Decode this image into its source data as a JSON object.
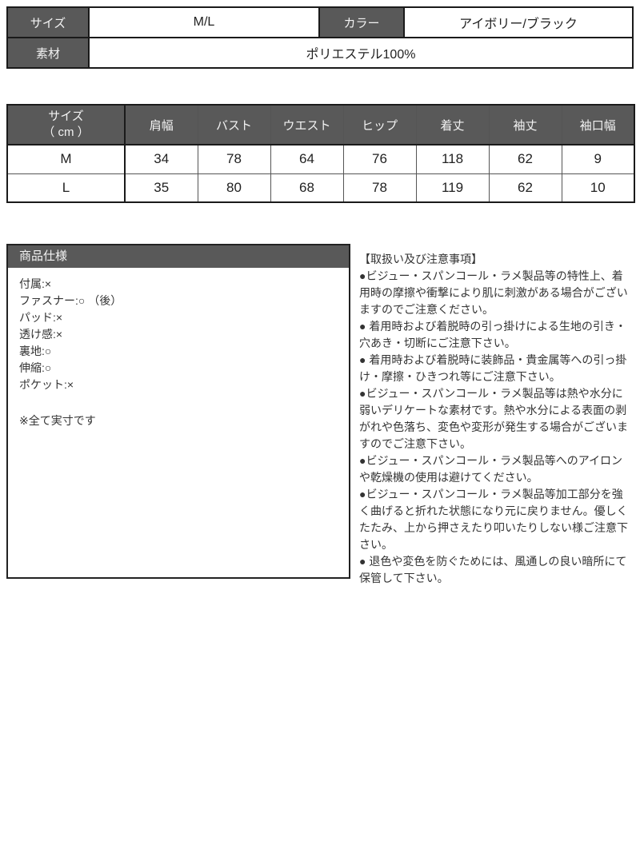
{
  "colors": {
    "header_bg": "#595959",
    "header_text": "#f2f2f2",
    "border": "#1a1a1a",
    "body_text": "#333333"
  },
  "info_table": {
    "size_label": "サイズ",
    "size_value": "M/L",
    "color_label": "カラー",
    "color_value": "アイボリー/ブラック",
    "material_label": "素材",
    "material_value": "ポリエステル100%"
  },
  "size_chart": {
    "col0_line1": "サイズ",
    "col0_line2": "（ cm ）",
    "columns": [
      "肩幅",
      "バスト",
      "ウエスト",
      "ヒップ",
      "着丈",
      "袖丈",
      "袖口幅"
    ],
    "rows": [
      {
        "size": "M",
        "values": [
          34,
          78,
          64,
          76,
          118,
          62,
          9
        ]
      },
      {
        "size": "L",
        "values": [
          35,
          80,
          68,
          78,
          119,
          62,
          10
        ]
      }
    ]
  },
  "spec_box": {
    "title": "商品仕様",
    "lines": [
      "付属:×",
      "ファスナー:○ （後）",
      "パッド:×",
      "透け感:×",
      "裏地:○",
      "伸縮:○",
      "ポケット:×"
    ],
    "note": "※全て実寸です"
  },
  "care_notes": {
    "title": "【取扱い及び注意事項】",
    "items": [
      "●ビジュー・スパンコール・ラメ製品等の特性上、着用時の摩擦や衝撃により肌に刺激がある場合がございますのでご注意ください。",
      "● 着用時および着脱時の引っ掛けによる生地の引き・穴あき・切断にご注意下さい。",
      "● 着用時および着脱時に装飾品・貴金属等への引っ掛け・摩擦・ひきつれ等にご注意下さい。",
      "●ビジュー・スパンコール・ラメ製品等は熱や水分に弱いデリケートな素材です。熱や水分による表面の剥がれや色落ち、変色や変形が発生する場合がございますのでご注意下さい。",
      "●ビジュー・スパンコール・ラメ製品等へのアイロンや乾燥機の使用は避けてください。",
      "●ビジュー・スパンコール・ラメ製品等加工部分を強く曲げると折れた状態になり元に戻りません。優しくたたみ、上から押さえたり叩いたりしない様ご注意下さい。",
      "● 退色や変色を防ぐためには、風通しの良い暗所にて保管して下さい。"
    ]
  }
}
